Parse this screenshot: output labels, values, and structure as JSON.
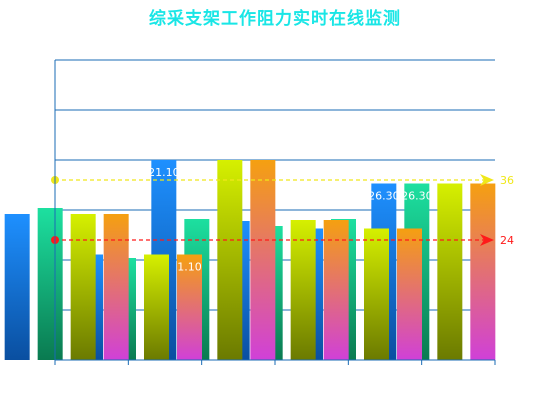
{
  "chart_data": {
    "type": "bar",
    "title": "综采支架工作阻力实时在线监测",
    "categories": [
      "",
      "",
      "",
      "",
      "",
      ""
    ],
    "ylim": [
      0,
      60
    ],
    "grid": true,
    "series": [
      {
        "name": "",
        "values": [
          29.2,
          21.1,
          40.0,
          27.8,
          26.3,
          35.3
        ]
      },
      {
        "name": "",
        "values": [
          30.4,
          20.4,
          28.2,
          26.8,
          28.2,
          35.3
        ]
      },
      {
        "name": "",
        "values": [
          29.2,
          21.1,
          40.0,
          28.0,
          26.3,
          35.3
        ]
      },
      {
        "name": "",
        "values": [
          29.2,
          21.1,
          40.0,
          28.0,
          26.3,
          35.3
        ]
      }
    ],
    "visible_value_labels": [
      "1.10",
      "21.10",
      "26.30",
      "26.30"
    ],
    "reference_lines": [
      {
        "value": 36,
        "label": "36",
        "color": "#f0e81a"
      },
      {
        "value": 24,
        "label": "24",
        "color": "#ff1a1a"
      }
    ],
    "colors": {
      "title": "#19e6e6",
      "axis": "#1a6bb5",
      "blue_top": "#1e90ff",
      "blue_bottom": "#0a4fa0",
      "teal_top": "#1de0a0",
      "teal_bottom": "#0a7a50",
      "lime_top": "#d6f000",
      "lime_bottom": "#6b7a00",
      "orange_top": "#f5a010",
      "orange_bottom": "#d040d8"
    }
  }
}
